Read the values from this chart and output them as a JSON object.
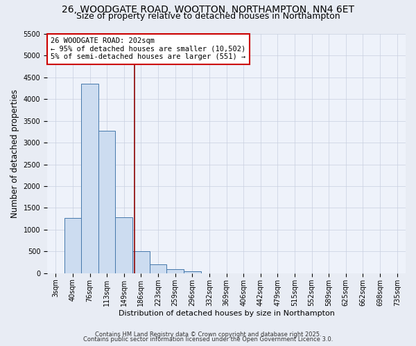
{
  "title_line1": "26, WOODGATE ROAD, WOOTTON, NORTHAMPTON, NN4 6ET",
  "title_line2": "Size of property relative to detached houses in Northampton",
  "xlabel": "Distribution of detached houses by size in Northampton",
  "ylabel": "Number of detached properties",
  "bar_labels": [
    "3sqm",
    "40sqm",
    "76sqm",
    "113sqm",
    "149sqm",
    "186sqm",
    "223sqm",
    "259sqm",
    "296sqm",
    "332sqm",
    "369sqm",
    "406sqm",
    "442sqm",
    "479sqm",
    "515sqm",
    "552sqm",
    "589sqm",
    "625sqm",
    "662sqm",
    "698sqm",
    "735sqm"
  ],
  "bar_values": [
    0,
    1270,
    4360,
    3280,
    1290,
    510,
    200,
    90,
    50,
    0,
    0,
    0,
    0,
    0,
    0,
    0,
    0,
    0,
    0,
    0,
    0
  ],
  "bar_color": "#ccdcf0",
  "bar_edge_color": "#4477aa",
  "ylim": [
    0,
    5500
  ],
  "yticks": [
    0,
    500,
    1000,
    1500,
    2000,
    2500,
    3000,
    3500,
    4000,
    4500,
    5000,
    5500
  ],
  "annotation_title": "26 WOODGATE ROAD: 202sqm",
  "annotation_line1": "← 95% of detached houses are smaller (10,502)",
  "annotation_line2": "5% of semi-detached houses are larger (551) →",
  "vline_pos": 4.6,
  "bg_color": "#e8ecf4",
  "plot_bg_color": "#eef2fa",
  "footer_line1": "Contains HM Land Registry data © Crown copyright and database right 2025.",
  "footer_line2": "Contains public sector information licensed under the Open Government Licence 3.0.",
  "title_fontsize": 10,
  "subtitle_fontsize": 9,
  "tick_fontsize": 7,
  "ylabel_fontsize": 8.5,
  "xlabel_fontsize": 8,
  "annot_fontsize": 7.5,
  "footer_fontsize": 6
}
